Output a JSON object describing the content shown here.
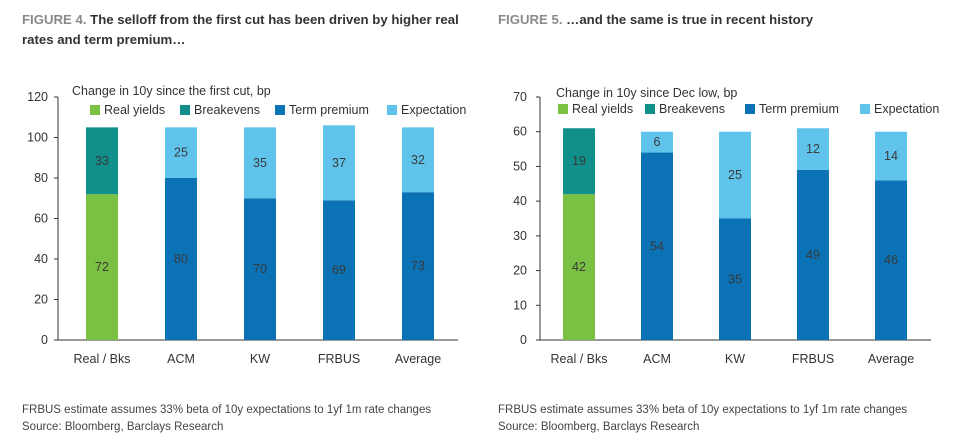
{
  "colors": {
    "real_yields": "#7ac143",
    "breakevens": "#118f8a",
    "term_premium": "#0a72b5",
    "expectation": "#5fc3ec",
    "axis": "#333333",
    "label_dark": "#3a3a3a"
  },
  "figures": [
    {
      "number": "FIGURE 4.",
      "title": "The selloff from the first cut has been driven by higher real rates and term premium…",
      "note": "FRBUS estimate assumes 33% beta of 10y expectations to 1yf 1m rate changes",
      "source": "Source: Bloomberg, Barclays Research"
    },
    {
      "number": "FIGURE 5.",
      "title": "…and the same is true in recent history",
      "note": "FRBUS estimate assumes 33% beta of 10y expectations to 1yf 1m rate changes",
      "source": "Source: Bloomberg, Barclays Research"
    }
  ],
  "chart_data": [
    {
      "type": "bar",
      "stacked": true,
      "ylabel": "Change in 10y since the first cut, bp",
      "ylim": [
        0,
        120
      ],
      "yticks": [
        0,
        20,
        40,
        60,
        80,
        100,
        120
      ],
      "grid": false,
      "legend_position": "top",
      "categories": [
        "Real / Bks",
        "ACM",
        "KW",
        "FRBUS",
        "Average"
      ],
      "series": [
        {
          "name": "Real yields",
          "color_key": "real_yields",
          "values": [
            72,
            null,
            null,
            null,
            null
          ]
        },
        {
          "name": "Breakevens",
          "color_key": "breakevens",
          "values": [
            33,
            null,
            null,
            null,
            null
          ]
        },
        {
          "name": "Term premium",
          "color_key": "term_premium",
          "values": [
            null,
            80,
            70,
            69,
            73
          ]
        },
        {
          "name": "Expectation",
          "color_key": "expectation",
          "values": [
            null,
            25,
            35,
            37,
            32
          ]
        }
      ]
    },
    {
      "type": "bar",
      "stacked": true,
      "ylabel": "Change in 10y since Dec low, bp",
      "ylim": [
        0,
        70
      ],
      "yticks": [
        0,
        10,
        20,
        30,
        40,
        50,
        60,
        70
      ],
      "grid": false,
      "legend_position": "top",
      "categories": [
        "Real / Bks",
        "ACM",
        "KW",
        "FRBUS",
        "Average"
      ],
      "series": [
        {
          "name": "Real yields",
          "color_key": "real_yields",
          "values": [
            42,
            null,
            null,
            null,
            null
          ]
        },
        {
          "name": "Breakevens",
          "color_key": "breakevens",
          "values": [
            19,
            null,
            null,
            null,
            null
          ]
        },
        {
          "name": "Term premium",
          "color_key": "term_premium",
          "values": [
            null,
            54,
            35,
            49,
            46
          ]
        },
        {
          "name": "Expectation",
          "color_key": "expectation",
          "values": [
            null,
            6,
            25,
            12,
            14
          ]
        }
      ]
    }
  ]
}
